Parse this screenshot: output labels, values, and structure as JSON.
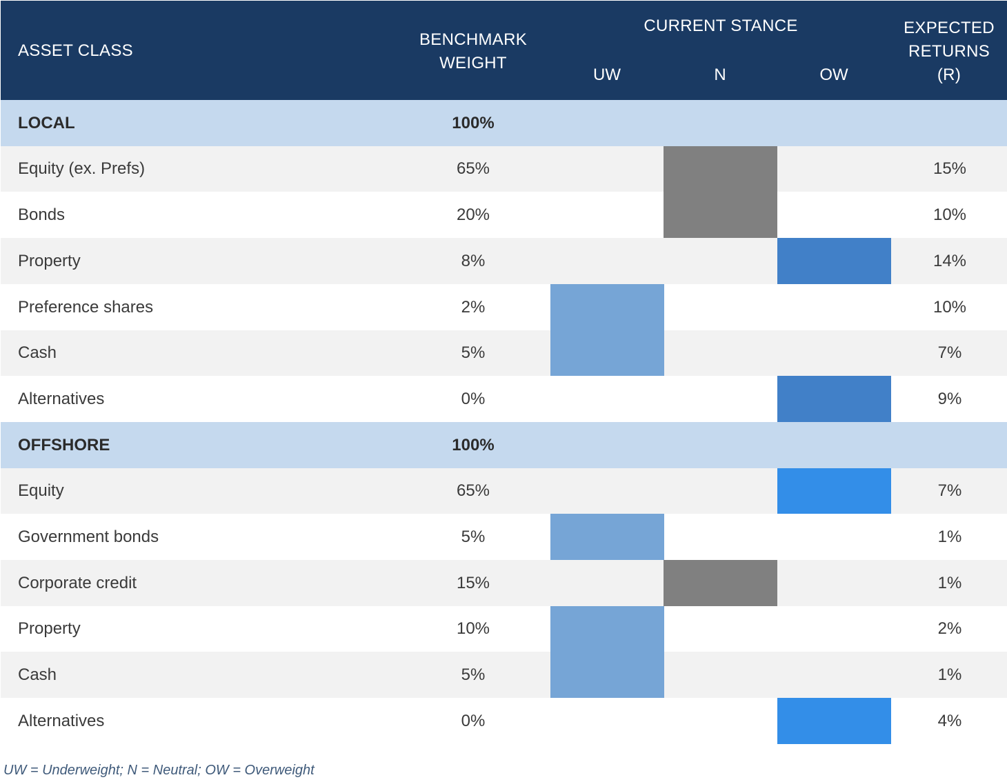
{
  "chart_data": {
    "type": "table",
    "headers": {
      "asset_class": "ASSET CLASS",
      "benchmark_weight": "BENCHMARK\nWEIGHT",
      "current_stance": "CURRENT STANCE",
      "expected_returns": "EXPECTED\nRETURNS\n(R)"
    },
    "stance_levels": [
      "UW",
      "N",
      "OW"
    ],
    "stance_colors": {
      "UW": "#76a5d6",
      "N": "#808080",
      "OW": "#338ee8",
      "OW_local": "#4180c8"
    },
    "rows": [
      {
        "type": "group",
        "name": "LOCAL",
        "weight": "100%",
        "stance": "",
        "returns": ""
      },
      {
        "type": "item",
        "name": "Equity (ex. Prefs)",
        "weight": "65%",
        "stance": "N",
        "returns": "15%"
      },
      {
        "type": "item",
        "name": "Bonds",
        "weight": "20%",
        "stance": "N",
        "returns": "10%"
      },
      {
        "type": "item",
        "name": "Property",
        "weight": "8%",
        "stance": "OW",
        "returns": "14%"
      },
      {
        "type": "item",
        "name": "Preference shares",
        "weight": "2%",
        "stance": "UW",
        "returns": "10%"
      },
      {
        "type": "item",
        "name": "Cash",
        "weight": "5%",
        "stance": "UW",
        "returns": "7%"
      },
      {
        "type": "item",
        "name": "Alternatives",
        "weight": "0%",
        "stance": "OW",
        "returns": "9%"
      },
      {
        "type": "group",
        "name": "OFFSHORE",
        "weight": "100%",
        "stance": "",
        "returns": ""
      },
      {
        "type": "item",
        "name": "Equity",
        "weight": "65%",
        "stance": "OW",
        "returns": "7%"
      },
      {
        "type": "item",
        "name": "Government bonds",
        "weight": "5%",
        "stance": "UW",
        "returns": "1%"
      },
      {
        "type": "item",
        "name": "Corporate credit",
        "weight": "15%",
        "stance": "N",
        "returns": "1%"
      },
      {
        "type": "item",
        "name": "Property",
        "weight": "10%",
        "stance": "UW",
        "returns": "2%"
      },
      {
        "type": "item",
        "name": "Cash",
        "weight": "5%",
        "stance": "UW",
        "returns": "1%"
      },
      {
        "type": "item",
        "name": "Alternatives",
        "weight": "0%",
        "stance": "OW",
        "returns": "4%"
      }
    ],
    "footnote": "UW = Underweight; N = Neutral; OW = Overweight"
  }
}
